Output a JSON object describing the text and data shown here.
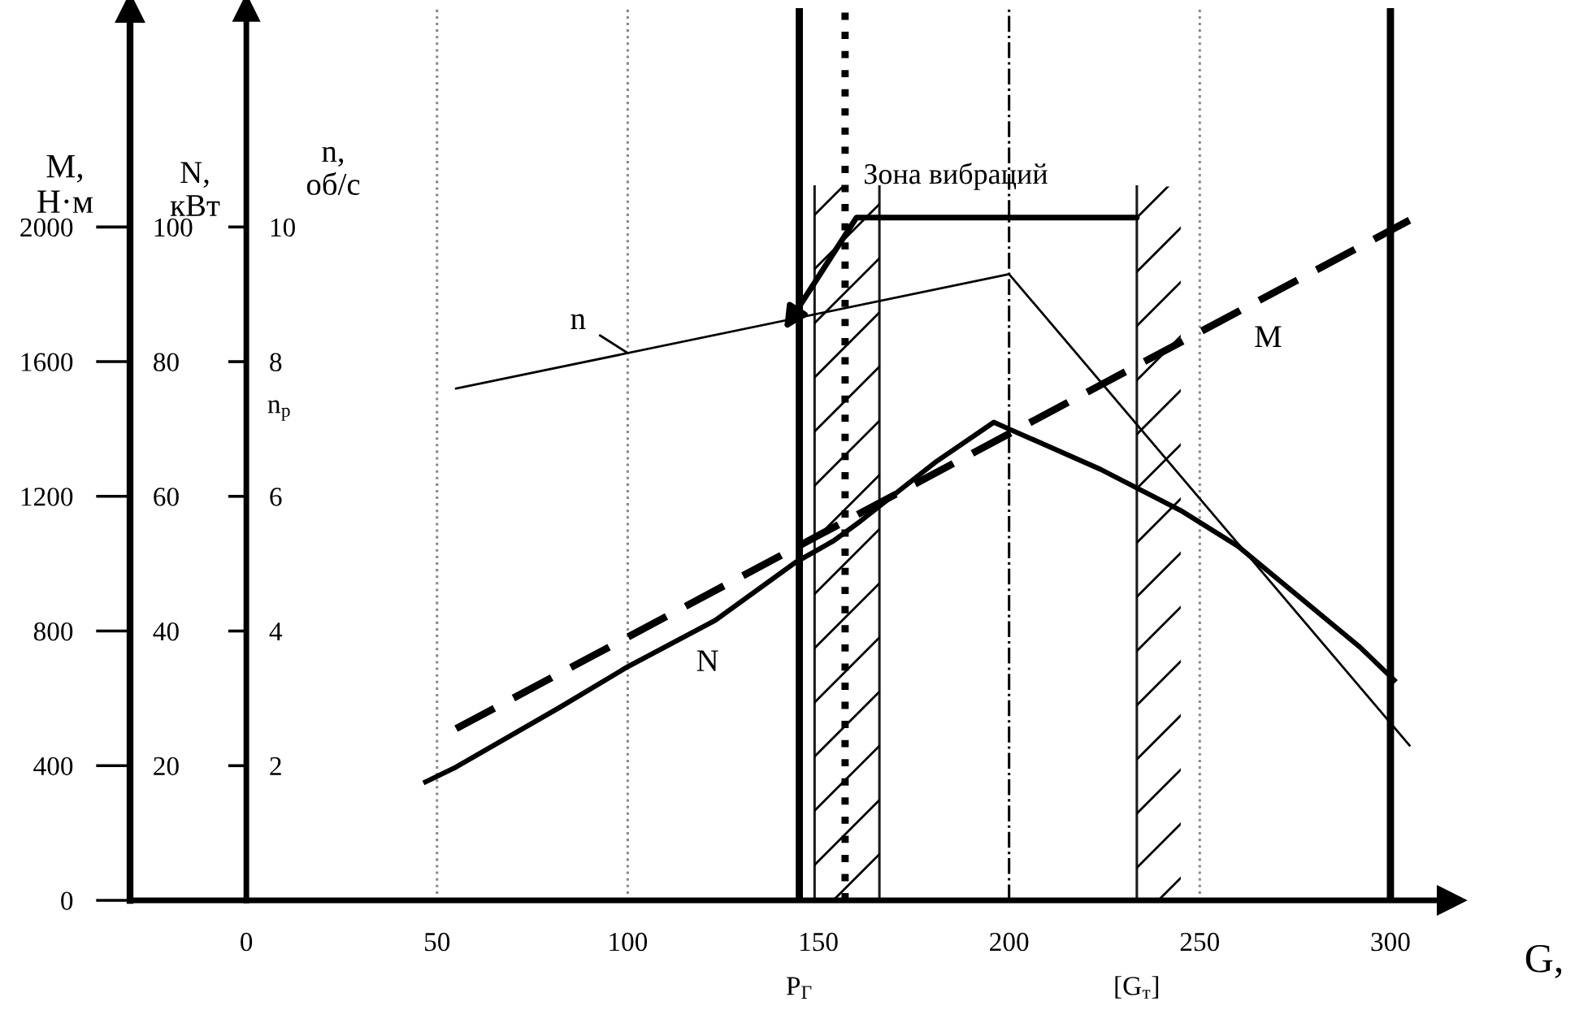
{
  "chart_data": {
    "type": "line",
    "xlabel": "G,",
    "ylabel": "M,\nН·м",
    "y2label": "N,\nкВт",
    "y3label": "n,\nоб/с",
    "xlim": [
      -30.5,
      316
    ],
    "xticks": [
      0,
      50,
      100,
      150,
      200,
      250,
      300
    ],
    "ylim": [
      0,
      2650
    ],
    "yticks": [
      0,
      400,
      800,
      1200,
      1600,
      2000
    ],
    "y2lim": [
      0,
      132.5
    ],
    "y2ticks": [
      20,
      40,
      60,
      80,
      100
    ],
    "y3lim": [
      0,
      13.25
    ],
    "y3ticks": [
      2,
      4,
      6,
      8,
      10
    ],
    "grid": false,
    "legend": false,
    "marker": "none",
    "series": [
      {
        "name": "n",
        "axis": "y3",
        "color": "#000000",
        "line_style": "solid",
        "x": [
          55,
          200,
          305
        ],
        "values": [
          7.6,
          9.3,
          2.3
        ]
      },
      {
        "name": "N",
        "axis": "y2",
        "color": "#000000",
        "line_style": "solid",
        "x": [
          47,
          55,
          82,
          100,
          123,
          144,
          154,
          161,
          181,
          196,
          200,
          224,
          245,
          260,
          279,
          292,
          301
        ],
        "values": [
          17.6,
          19.8,
          28.6,
          34.7,
          41.6,
          50.2,
          53.4,
          56.3,
          65.2,
          71,
          70,
          64,
          57.9,
          52.6,
          43.7,
          37.6,
          32.7
        ]
      },
      {
        "name": "M",
        "axis": "y",
        "color": "#000000",
        "line_style": "dashed",
        "x": [
          55,
          305
        ],
        "values": [
          510,
          2020
        ]
      }
    ],
    "ref_lines": [
      {
        "axis": "x",
        "value": 50,
        "color": "#888888",
        "line_style": "dotted"
      },
      {
        "axis": "x",
        "value": 100,
        "color": "#888888",
        "line_style": "dotted"
      },
      {
        "axis": "x",
        "value": 250,
        "color": "#888888",
        "line_style": "dotted"
      },
      {
        "axis": "x",
        "value": 200,
        "color": "#000000",
        "line_style": "dashdot"
      },
      {
        "axis": "x",
        "value": 157,
        "color": "#000000",
        "line_style": "dotted"
      },
      {
        "axis": "x",
        "value": 145,
        "color": "#000000",
        "line_style": "solid",
        "label": "P$_{Г}$"
      },
      {
        "axis": "x",
        "value": 300,
        "color": "#000000",
        "line_style": "solid"
      },
      {
        "axis": "x",
        "value": 149,
        "color": "#1a1a1a",
        "line_style": "solid"
      },
      {
        "axis": "x",
        "value": 166,
        "color": "#1a1a1a",
        "line_style": "solid"
      },
      {
        "axis": "x",
        "value": 233.5,
        "color": "#1a1a1a",
        "line_style": "solid"
      }
    ],
    "bands": [
      {
        "axis": "x",
        "from": 149,
        "to": 166,
        "color": "#000000"
      },
      {
        "axis": "x",
        "from": 233.5,
        "to": 245,
        "color": "#000000",
        "label": "[G$_{т}$]"
      }
    ],
    "annotations": [
      "Зона вибраций",
      "n$_{p}$"
    ]
  }
}
